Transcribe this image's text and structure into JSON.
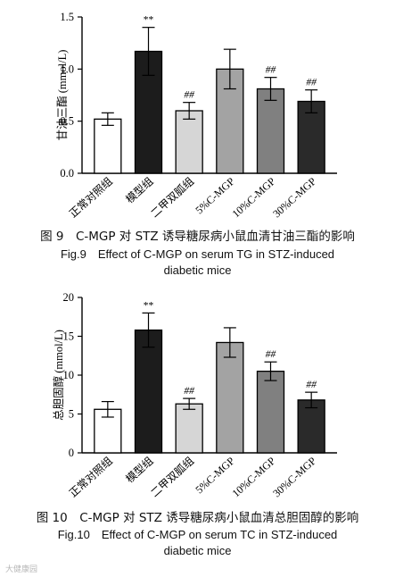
{
  "chart_data": [
    {
      "type": "bar",
      "ylabel": "甘油三酯 (mmol/L)",
      "ylim": [
        0,
        1.5
      ],
      "yticks": [
        "0.0",
        "0.5",
        "1.0",
        "1.5"
      ],
      "categories": [
        "正常对照组",
        "模型组",
        "二甲双胍组",
        "5%C-MGP",
        "10%C-MGP",
        "30%C-MGP"
      ],
      "values": [
        0.52,
        1.17,
        0.6,
        1.0,
        0.81,
        0.69
      ],
      "errors": [
        0.06,
        0.23,
        0.08,
        0.19,
        0.11,
        0.11
      ],
      "significance": [
        "",
        "**",
        "##",
        "",
        "##",
        "##"
      ],
      "bar_colors": [
        "#ffffff",
        "#1c1c1c",
        "#d6d6d6",
        "#a3a3a3",
        "#808080",
        "#2a2a2a"
      ],
      "caption_cn": "图 9　C-MGP 对 STZ 诱导糖尿病小鼠血清甘油三酯的影响",
      "caption_en": [
        "Fig.9　Effect of C-MGP on serum TG in STZ-induced",
        "diabetic mice"
      ]
    },
    {
      "type": "bar",
      "ylabel": "总胆固醇 (mmol/L)",
      "ylim": [
        0,
        20
      ],
      "yticks": [
        "0",
        "5",
        "10",
        "15",
        "20"
      ],
      "categories": [
        "正常对照组",
        "模型组",
        "二甲双胍组",
        "5%C-MGP",
        "10%C-MGP",
        "30%C-MGP"
      ],
      "values": [
        5.6,
        15.8,
        6.3,
        14.2,
        10.5,
        6.8
      ],
      "errors": [
        1.0,
        2.2,
        0.7,
        1.9,
        1.2,
        1.0
      ],
      "significance": [
        "",
        "**",
        "##",
        "",
        "##",
        "##"
      ],
      "bar_colors": [
        "#ffffff",
        "#1c1c1c",
        "#d6d6d6",
        "#a3a3a3",
        "#808080",
        "#2a2a2a"
      ],
      "caption_cn": "图 10　C-MGP 对 STZ 诱导糖尿病小鼠血清总胆固醇的影响",
      "caption_en": [
        "Fig.10　Effect of C-MGP on serum TC in STZ-induced",
        "diabetic mice"
      ]
    }
  ],
  "watermark": "大健康园"
}
